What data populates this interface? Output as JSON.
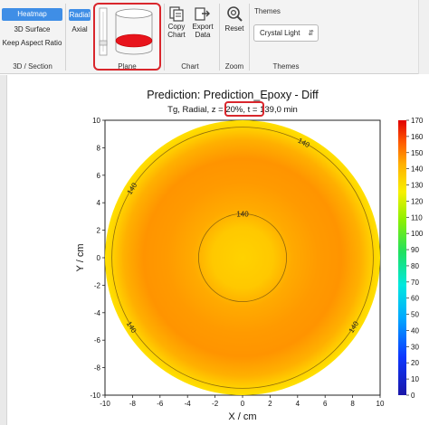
{
  "ribbon": {
    "view_group": {
      "label": "3D / Section",
      "items": [
        {
          "label": "Heatmap",
          "active": true
        },
        {
          "label": "3D Surface",
          "active": false
        },
        {
          "label": "Keep Aspect Ratio",
          "active": false
        }
      ]
    },
    "mode_group": {
      "items": [
        {
          "label": "Radial",
          "active": true
        },
        {
          "label": "Axial",
          "active": false
        }
      ]
    },
    "plane_group": {
      "label": "Plane"
    },
    "chart_group": {
      "label": "Chart",
      "copy": {
        "line1": "Copy",
        "line2": "Chart"
      },
      "export": {
        "line1": "Export",
        "line2": "Data"
      }
    },
    "zoom_group": {
      "label": "Zoom",
      "reset": "Reset"
    },
    "themes_group": {
      "title": "Themes",
      "label": "Themes",
      "selected": "Crystal Light"
    }
  },
  "chart": {
    "title": "Prediction: Prediction_Epoxy - Diff",
    "subtitle_pre": "Tg, Radial, ",
    "subtitle_z": "z = 20%",
    "subtitle_post": ", t = 139,0 min",
    "xlabel": "X / cm",
    "ylabel": "Y / cm",
    "colors": {
      "accent": "#3f8ee6",
      "highlight": "#d9262c"
    }
  },
  "chart_data": {
    "type": "heatmap",
    "xlabel": "X / cm",
    "ylabel": "Y / cm",
    "xlim": [
      -10,
      10
    ],
    "ylim": [
      -10,
      10
    ],
    "xticks": [
      -10,
      -8,
      -6,
      -4,
      -2,
      0,
      2,
      4,
      6,
      8,
      10
    ],
    "yticks": [
      -10,
      -8,
      -6,
      -4,
      -2,
      0,
      2,
      4,
      6,
      8,
      10
    ],
    "colorbar": {
      "min": 0,
      "max": 170,
      "ticks": [
        0,
        10,
        20,
        30,
        40,
        50,
        60,
        70,
        80,
        90,
        100,
        110,
        120,
        130,
        140,
        150,
        160,
        170
      ]
    },
    "radial_profile": {
      "radius": [
        0,
        2.5,
        4.5,
        6.5,
        8.5,
        9.6,
        10
      ],
      "value": [
        141.5,
        140.8,
        148,
        152,
        145,
        140,
        138.5
      ]
    },
    "contours": [
      {
        "level": 140,
        "radius": 3.2,
        "label": "140",
        "label_angle_deg": 90
      },
      {
        "level": 140,
        "radius": 9.5,
        "label": "140",
        "label_angles_deg": [
          62,
          148,
          212,
          328
        ]
      }
    ]
  }
}
